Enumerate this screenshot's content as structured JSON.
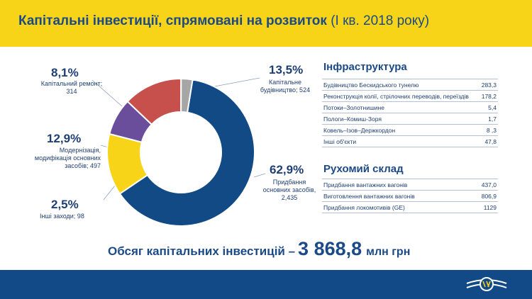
{
  "header": {
    "title": "Капітальні інвестиції, спрямовані на розвиток",
    "period": "(І кв. 2018 року)"
  },
  "chart_data": {
    "type": "pie",
    "variant": "donut",
    "categories": [
      "Придбання основних засобів",
      "Капітальне будівництво",
      "Капітальний ремонт",
      "Модернізація, модифікація основних засобів",
      "Інші заходи"
    ],
    "values_pct": [
      62.9,
      13.5,
      8.1,
      12.9,
      2.5
    ],
    "values": [
      "2,435",
      "524",
      "314",
      "497",
      "98"
    ],
    "colors": [
      "#124a86",
      "#f7d418",
      "#6b4e9b",
      "#c8504c",
      "#a6a6a6"
    ],
    "labels": [
      {
        "pct": "62,9%",
        "text": [
          "Придбання",
          "основних засобів,",
          "2,435"
        ]
      },
      {
        "pct": "13,5%",
        "text": [
          "Капітальне",
          "будівництво; 524"
        ]
      },
      {
        "pct": "8,1%",
        "text": [
          "Капітальний ремонт;",
          "314"
        ]
      },
      {
        "pct": "12,9%",
        "text": [
          "Модернізація,",
          "модифікація основних",
          "засобів;  497"
        ]
      },
      {
        "pct": "2,5%",
        "text": [
          "Інші заходи;  98"
        ]
      }
    ]
  },
  "infrastructure": {
    "title": "Інфраструктура",
    "rows": [
      {
        "name": "Будівництво Бескидського тунелю",
        "value": "283,3"
      },
      {
        "name": "Реконструкція колії, стрілочних переводів, переїздів",
        "value": "178,2"
      },
      {
        "name": "Потоки–Золотнишине",
        "value": "5,4"
      },
      {
        "name": "Пологи–Комиш-Зоря",
        "value": "1,7"
      },
      {
        "name": "Ковель–Ізов–Держкордон",
        "value": "8 ,3"
      },
      {
        "name": "Інші об'єкти",
        "value": "47,8"
      }
    ]
  },
  "rolling_stock": {
    "title": "Рухомий склад",
    "rows": [
      {
        "name": "Придбання вантажних вагонів",
        "value": "437,0"
      },
      {
        "name": "Виготовлення вантажних вагонів",
        "value": "806,9"
      },
      {
        "name": "Придбання локомотивів (GE)",
        "value": "1129"
      }
    ]
  },
  "total": {
    "prefix": "Обсяг капітальних інвестицій –",
    "amount": "3 868,8",
    "unit": "млн грн"
  }
}
